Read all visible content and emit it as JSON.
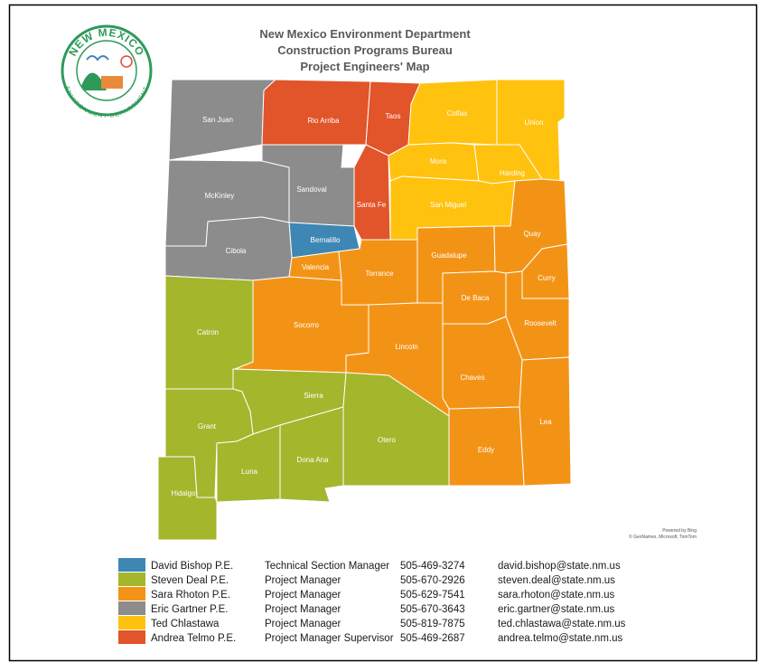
{
  "header": {
    "title_lines": [
      "New Mexico Environment Department",
      "Construction Programs Bureau",
      "Project Engineers' Map"
    ]
  },
  "logo": {
    "top_text": "NEW MEXICO",
    "bottom_text": "ENVIRONMENT DEPARTMENT"
  },
  "counties": [
    {
      "name": "San Juan",
      "color": "#8c8c8c"
    },
    {
      "name": "Rio Arriba",
      "color": "#e2542a"
    },
    {
      "name": "Taos",
      "color": "#e2542a"
    },
    {
      "name": "Colfax",
      "color": "#ffc20e"
    },
    {
      "name": "Union",
      "color": "#ffc20e"
    },
    {
      "name": "McKinley",
      "color": "#8c8c8c"
    },
    {
      "name": "Sandoval",
      "color": "#8c8c8c"
    },
    {
      "name": "Santa Fe",
      "color": "#e2542a"
    },
    {
      "name": "Mora",
      "color": "#ffc20e"
    },
    {
      "name": "Harding",
      "color": "#ffc20e"
    },
    {
      "name": "San Miguel",
      "color": "#ffc20e"
    },
    {
      "name": "Bernalillo",
      "color": "#3e87b5"
    },
    {
      "name": "Cibola",
      "color": "#8c8c8c"
    },
    {
      "name": "Valencia",
      "color": "#f39316"
    },
    {
      "name": "Torrance",
      "color": "#f39316"
    },
    {
      "name": "Guadalupe",
      "color": "#f39316"
    },
    {
      "name": "Quay",
      "color": "#f39316"
    },
    {
      "name": "Curry",
      "color": "#f39316"
    },
    {
      "name": "De Baca",
      "color": "#f39316"
    },
    {
      "name": "Roosevelt",
      "color": "#f39316"
    },
    {
      "name": "Chaves",
      "color": "#f39316"
    },
    {
      "name": "Lea",
      "color": "#f39316"
    },
    {
      "name": "Eddy",
      "color": "#f39316"
    },
    {
      "name": "Lincoln",
      "color": "#f39316"
    },
    {
      "name": "Socorro",
      "color": "#f39316"
    },
    {
      "name": "Catron",
      "color": "#a4b62c"
    },
    {
      "name": "Sierra",
      "color": "#a4b62c"
    },
    {
      "name": "Otero",
      "color": "#a4b62c"
    },
    {
      "name": "Dona Ana",
      "color": "#a4b62c"
    },
    {
      "name": "Grant",
      "color": "#a4b62c"
    },
    {
      "name": "Luna",
      "color": "#a4b62c"
    },
    {
      "name": "Hidalgo",
      "color": "#a4b62c"
    }
  ],
  "attribution": [
    "Powered by Bing",
    "© GeoNames, Microsoft, TomTom"
  ],
  "legend": [
    {
      "name": "David Bishop P.E.",
      "title": "Technical Section Manager",
      "phone": "505-469-3274",
      "email": "david.bishop@state.nm.us",
      "color": "#3e87b5"
    },
    {
      "name": "Steven Deal P.E.",
      "title": "Project Manager",
      "phone": "505-670-2926",
      "email": "steven.deal@state.nm.us",
      "color": "#a4b62c"
    },
    {
      "name": "Sara Rhoton P.E.",
      "title": "Project Manager",
      "phone": "505-629-7541",
      "email": "sara.rhoton@state.nm.us",
      "color": "#f39316"
    },
    {
      "name": "Eric Gartner P.E.",
      "title": "Project Manager",
      "phone": "505-670-3643",
      "email": "eric.gartner@state.nm.us",
      "color": "#8c8c8c"
    },
    {
      "name": "Ted Chlastawa",
      "title": "Project Manager",
      "phone": "505-819-7875",
      "email": "ted.chlastawa@state.nm.us",
      "color": "#ffc20e"
    },
    {
      "name": "Andrea Telmo P.E.",
      "title": "Project Manager Supervisor",
      "phone": "505-469-2687",
      "email": "andrea.telmo@state.nm.us",
      "color": "#e2542a"
    }
  ]
}
